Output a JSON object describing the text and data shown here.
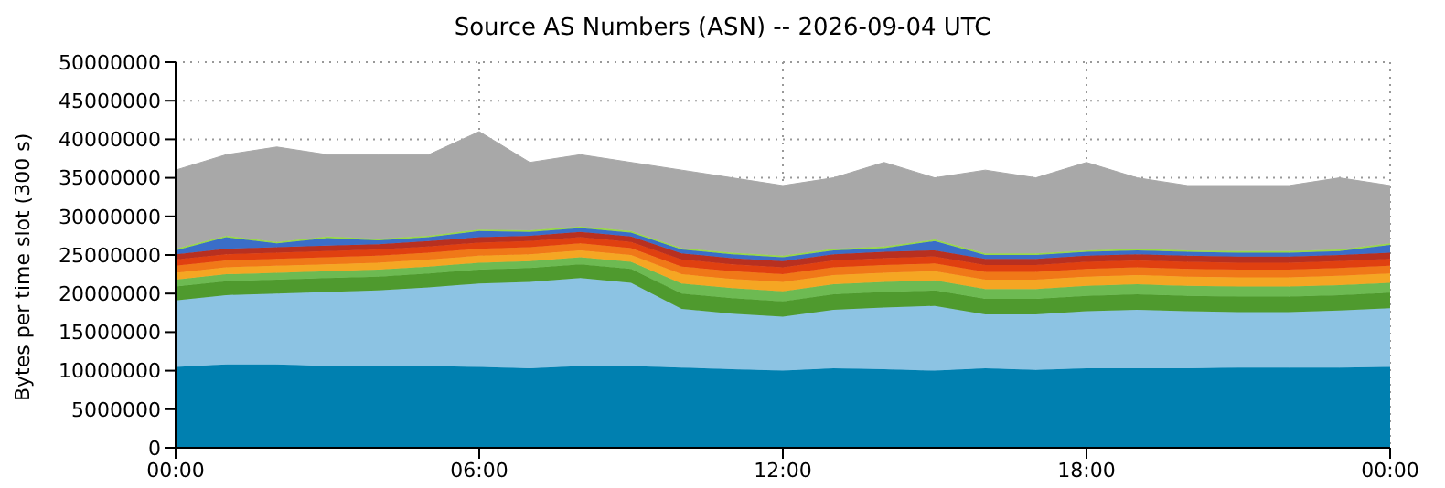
{
  "chart_data": {
    "type": "area",
    "stacked": true,
    "title": "Source AS Numbers (ASN) -- 2026-09-04 UTC",
    "ylabel": "Bytes per time slot (300 s)",
    "x": [
      0,
      1,
      2,
      3,
      4,
      5,
      6,
      7,
      8,
      9,
      10,
      11,
      12,
      13,
      14,
      15,
      16,
      17,
      18,
      19,
      20,
      21,
      22,
      23,
      24
    ],
    "xlim": [
      0,
      24
    ],
    "xticks": [
      {
        "value": 0,
        "label": "00:00"
      },
      {
        "value": 6,
        "label": "06:00"
      },
      {
        "value": 12,
        "label": "12:00"
      },
      {
        "value": 18,
        "label": "18:00"
      },
      {
        "value": 24,
        "label": "00:00"
      }
    ],
    "ylim": [
      0,
      50000000
    ],
    "yticks": [
      0,
      5000000,
      10000000,
      15000000,
      20000000,
      25000000,
      30000000,
      35000000,
      40000000,
      45000000,
      50000000
    ],
    "grid": true,
    "legend": false,
    "series": [
      {
        "color": "#0080b0",
        "values": [
          10500000,
          10800000,
          10800000,
          10600000,
          10600000,
          10600000,
          10500000,
          10300000,
          10600000,
          10600000,
          10400000,
          10200000,
          10000000,
          10300000,
          10200000,
          10000000,
          10300000,
          10100000,
          10300000,
          10300000,
          10300000,
          10400000,
          10400000,
          10400000,
          10500000
        ]
      },
      {
        "color": "#8cc3e3",
        "values": [
          8600000,
          9000000,
          9200000,
          9600000,
          9800000,
          10200000,
          10800000,
          11200000,
          11400000,
          10800000,
          7600000,
          7200000,
          7000000,
          7600000,
          8000000,
          8400000,
          7000000,
          7200000,
          7400000,
          7600000,
          7400000,
          7200000,
          7200000,
          7400000,
          7600000
        ]
      },
      {
        "color": "#4f9a2e",
        "values": [
          1800000,
          1800000,
          1800000,
          1800000,
          1800000,
          1800000,
          1800000,
          1800000,
          1800000,
          1800000,
          2000000,
          2000000,
          2000000,
          2000000,
          2000000,
          2000000,
          2000000,
          2000000,
          2000000,
          2000000,
          2000000,
          2000000,
          2000000,
          2000000,
          2000000
        ]
      },
      {
        "color": "#6dba52",
        "values": [
          900000,
          900000,
          900000,
          900000,
          900000,
          900000,
          900000,
          900000,
          900000,
          900000,
          1300000,
          1300000,
          1300000,
          1300000,
          1300000,
          1300000,
          1300000,
          1300000,
          1300000,
          1300000,
          1300000,
          1300000,
          1300000,
          1300000,
          1300000
        ]
      },
      {
        "color": "#f5a623",
        "values": [
          900000,
          900000,
          900000,
          900000,
          900000,
          900000,
          900000,
          900000,
          900000,
          900000,
          1200000,
          1200000,
          1200000,
          1200000,
          1200000,
          1200000,
          1200000,
          1200000,
          1200000,
          1200000,
          1200000,
          1200000,
          1200000,
          1200000,
          1200000
        ]
      },
      {
        "color": "#f07818",
        "values": [
          900000,
          900000,
          900000,
          900000,
          900000,
          900000,
          900000,
          900000,
          900000,
          900000,
          1000000,
          1000000,
          1000000,
          1000000,
          1000000,
          1000000,
          1000000,
          1000000,
          1000000,
          1000000,
          1000000,
          1000000,
          1000000,
          1000000,
          1000000
        ]
      },
      {
        "color": "#e04010",
        "values": [
          800000,
          800000,
          800000,
          800000,
          800000,
          800000,
          800000,
          800000,
          800000,
          800000,
          900000,
          900000,
          900000,
          900000,
          900000,
          900000,
          900000,
          900000,
          900000,
          900000,
          900000,
          900000,
          900000,
          900000,
          900000
        ]
      },
      {
        "color": "#b83020",
        "values": [
          700000,
          700000,
          700000,
          700000,
          700000,
          700000,
          700000,
          700000,
          700000,
          700000,
          800000,
          800000,
          800000,
          800000,
          800000,
          800000,
          800000,
          800000,
          800000,
          800000,
          800000,
          800000,
          800000,
          800000,
          800000
        ]
      },
      {
        "color": "#3a6ec8",
        "values": [
          500000,
          1500000,
          500000,
          1000000,
          500000,
          500000,
          800000,
          500000,
          500000,
          500000,
          500000,
          500000,
          500000,
          500000,
          500000,
          1200000,
          500000,
          500000,
          500000,
          500000,
          500000,
          500000,
          500000,
          500000,
          1000000
        ]
      },
      {
        "color": "#98d848",
        "values": [
          200000,
          200000,
          200000,
          200000,
          200000,
          200000,
          200000,
          200000,
          200000,
          200000,
          200000,
          200000,
          200000,
          200000,
          200000,
          200000,
          200000,
          200000,
          200000,
          200000,
          200000,
          200000,
          200000,
          200000,
          200000
        ]
      },
      {
        "color": "#a8a8a8",
        "values": [
          10200000,
          10500000,
          12300000,
          10600000,
          10900000,
          10500000,
          12700000,
          8800000,
          9300000,
          8900000,
          10100000,
          9700000,
          9100000,
          9200000,
          10900000,
          8000000,
          10800000,
          9800000,
          11400000,
          9200000,
          8400000,
          8500000,
          8500000,
          9300000,
          7500000
        ]
      }
    ]
  }
}
